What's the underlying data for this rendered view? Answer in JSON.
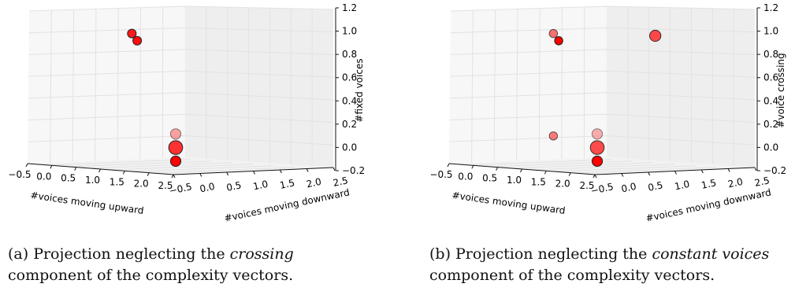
{
  "chart_data": [
    {
      "type": "scatter3d",
      "xlabel": "#voices moving upward",
      "ylabel": "#voices moving downward",
      "zlabel": "#fixed voices",
      "xticks": [
        "−0.5",
        "0.0",
        "0.5",
        "1.0",
        "1.5",
        "2.0",
        "2.5"
      ],
      "yticks": [
        "−0.5",
        "0.0",
        "0.5",
        "1.0",
        "1.5",
        "2.0",
        "2.5"
      ],
      "zticks": [
        "−0.2",
        "0.0",
        "0.2",
        "0.4",
        "0.6",
        "0.8",
        "1.0",
        "1.2"
      ],
      "zlim": [
        -0.2,
        1.2
      ],
      "points": [
        {
          "x": 0,
          "y": 1,
          "z": 1,
          "size": 1,
          "opacity": 0.9
        },
        {
          "x": 0,
          "y": 1.1,
          "z": 0.93,
          "size": 1,
          "opacity": 0.95
        },
        {
          "x": 2,
          "y": 0,
          "z": 0.13,
          "size": 1.2,
          "opacity": 0.35
        },
        {
          "x": 2,
          "y": 0,
          "z": 0.01,
          "size": 1.6,
          "opacity": 0.8
        },
        {
          "x": 2,
          "y": 0,
          "z": -0.11,
          "size": 1.2,
          "opacity": 1
        }
      ],
      "caption": {
        "prefix": "(a) Projection neglecting the ",
        "emph": "crossing",
        "suffix": " component of the complexity vectors."
      }
    },
    {
      "type": "scatter3d",
      "xlabel": "#voices moving upward",
      "ylabel": "#voices moving downward",
      "zlabel": "#voice crossing",
      "xticks": [
        "−0.5",
        "0.0",
        "0.5",
        "1.0",
        "1.5",
        "2.0",
        "2.5"
      ],
      "yticks": [
        "−0.5",
        "0.0",
        "0.5",
        "1.0",
        "1.5",
        "2.0",
        "2.5"
      ],
      "zticks": [
        "−0.2",
        "0.0",
        "0.2",
        "0.4",
        "0.6",
        "0.8",
        "1.0",
        "1.2"
      ],
      "zlim": [
        -0.2,
        1.2
      ],
      "points": [
        {
          "x": 0,
          "y": 1,
          "z": 1,
          "size": 0.95,
          "opacity": 0.55
        },
        {
          "x": 0,
          "y": 1.1,
          "z": 0.93,
          "size": 0.95,
          "opacity": 1
        },
        {
          "x": 1,
          "y": 2,
          "z": 0.98,
          "size": 1.3,
          "opacity": 0.7
        },
        {
          "x": 0,
          "y": 1,
          "z": 0.02,
          "size": 0.95,
          "opacity": 0.5
        },
        {
          "x": 2,
          "y": 0,
          "z": 0.13,
          "size": 1.2,
          "opacity": 0.3
        },
        {
          "x": 2,
          "y": 0,
          "z": 0.01,
          "size": 1.6,
          "opacity": 0.7
        },
        {
          "x": 2,
          "y": 0,
          "z": -0.11,
          "size": 1.2,
          "opacity": 1
        }
      ],
      "caption": {
        "prefix": "(b) Projection neglecting the ",
        "emph": "constant voices",
        "suffix": " component of the complexity vectors."
      }
    }
  ]
}
